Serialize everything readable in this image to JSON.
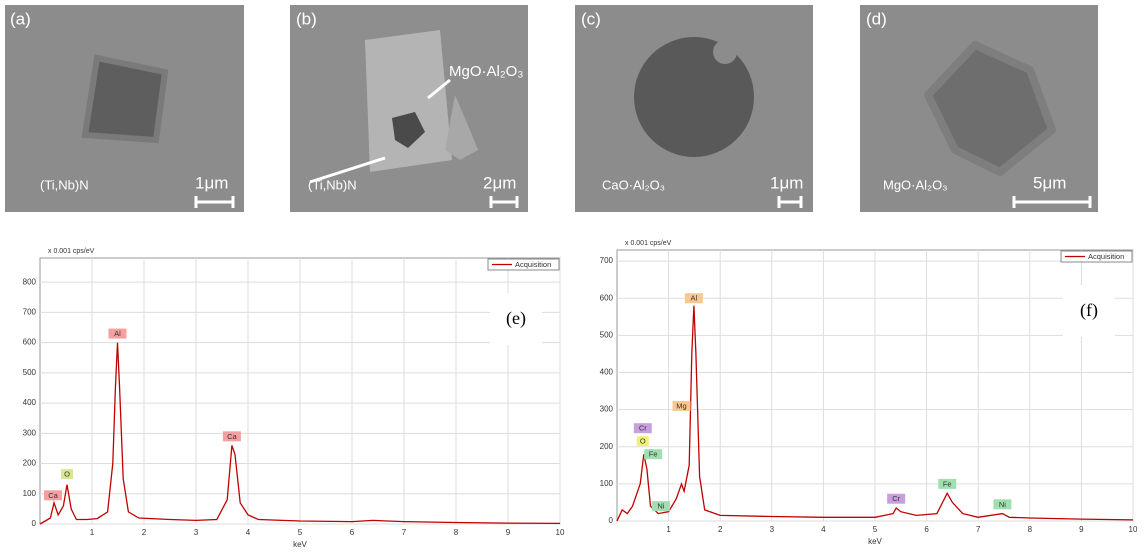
{
  "images": [
    {
      "panel": "(a)",
      "phase": "(Ti,Nb)N",
      "scale": "1μm"
    },
    {
      "panel": "(b)",
      "phase": "(Ti,Nb)N",
      "inclusion": "MgO·Al₂O₃",
      "scale": "2μm"
    },
    {
      "panel": "(c)",
      "phase": "CaO·Al₂O₃",
      "scale": "1μm"
    },
    {
      "panel": "(d)",
      "phase": "MgO·Al₂O₃",
      "scale": "5μm"
    }
  ],
  "chart_data": [
    {
      "type": "line",
      "panel": "(e)",
      "y_label": "x 0.001 cps/eV",
      "x_label": "keV",
      "xlim": [
        0,
        10
      ],
      "ylim": [
        0,
        880
      ],
      "xticks": [
        1,
        2,
        3,
        4,
        5,
        6,
        7,
        8,
        9,
        10
      ],
      "yticks": [
        0,
        100,
        200,
        300,
        400,
        500,
        600,
        700,
        800
      ],
      "grid": true,
      "legend": "upper right",
      "x": [
        0,
        0.1,
        0.2,
        0.27,
        0.35,
        0.45,
        0.52,
        0.6,
        0.7,
        0.9,
        1.1,
        1.3,
        1.4,
        1.45,
        1.49,
        1.53,
        1.6,
        1.7,
        1.9,
        2.5,
        3,
        3.4,
        3.6,
        3.69,
        3.75,
        3.85,
        4.0,
        4.2,
        5,
        6,
        6.4,
        7,
        8,
        9,
        10
      ],
      "series": [
        {
          "name": "Acquisition",
          "color": "#c00000",
          "values": [
            0,
            10,
            20,
            70,
            30,
            60,
            130,
            50,
            15,
            15,
            18,
            40,
            200,
            450,
            600,
            450,
            150,
            40,
            20,
            15,
            12,
            15,
            80,
            260,
            230,
            70,
            30,
            15,
            10,
            8,
            12,
            8,
            5,
            3,
            2
          ]
        }
      ],
      "annotations": [
        {
          "text": "Ca",
          "x": 0.25,
          "y": 95,
          "color": "#f4a0a0"
        },
        {
          "text": "O",
          "x": 0.52,
          "y": 165,
          "color": "#d8e890"
        },
        {
          "text": "Al",
          "x": 1.49,
          "y": 630,
          "color": "#f4a0a0"
        },
        {
          "text": "Ca",
          "x": 3.69,
          "y": 290,
          "color": "#f4a0a0"
        }
      ]
    },
    {
      "type": "line",
      "panel": "(f)",
      "y_label": "x 0.001 cps/eV",
      "x_label": "keV",
      "xlim": [
        0,
        10
      ],
      "ylim": [
        0,
        730
      ],
      "xticks": [
        1,
        2,
        3,
        4,
        5,
        6,
        7,
        8,
        9,
        10
      ],
      "yticks": [
        0,
        100,
        200,
        300,
        400,
        500,
        600,
        700
      ],
      "grid": true,
      "legend": "upper right",
      "x": [
        0,
        0.1,
        0.2,
        0.3,
        0.45,
        0.52,
        0.58,
        0.65,
        0.8,
        1.0,
        1.15,
        1.25,
        1.3,
        1.4,
        1.45,
        1.49,
        1.53,
        1.6,
        1.7,
        2,
        3,
        4,
        5,
        5.35,
        5.41,
        5.5,
        5.8,
        6.2,
        6.4,
        6.5,
        6.7,
        7,
        7.47,
        7.6,
        8,
        9,
        10
      ],
      "series": [
        {
          "name": "Acquisition",
          "color": "#c00000",
          "values": [
            0,
            30,
            20,
            40,
            100,
            180,
            140,
            40,
            20,
            25,
            60,
            100,
            80,
            150,
            450,
            580,
            450,
            120,
            30,
            15,
            12,
            10,
            10,
            20,
            35,
            25,
            15,
            20,
            75,
            50,
            20,
            10,
            20,
            10,
            8,
            5,
            3
          ]
        }
      ],
      "annotations": [
        {
          "text": "Cr",
          "x": 0.5,
          "y": 250,
          "color": "#c8a0e0"
        },
        {
          "text": "O",
          "x": 0.5,
          "y": 215,
          "color": "#f0f080"
        },
        {
          "text": "Fe",
          "x": 0.7,
          "y": 180,
          "color": "#a0e0b0"
        },
        {
          "text": "Ni",
          "x": 0.85,
          "y": 40,
          "color": "#a0e0b0"
        },
        {
          "text": "Mg",
          "x": 1.25,
          "y": 310,
          "color": "#f8c890"
        },
        {
          "text": "Al",
          "x": 1.49,
          "y": 600,
          "color": "#f8c890"
        },
        {
          "text": "Cr",
          "x": 5.41,
          "y": 60,
          "color": "#c8a0e0"
        },
        {
          "text": "Fe",
          "x": 6.4,
          "y": 100,
          "color": "#a0e0b0"
        },
        {
          "text": "Ni",
          "x": 7.47,
          "y": 45,
          "color": "#a0e0b0"
        }
      ]
    }
  ]
}
